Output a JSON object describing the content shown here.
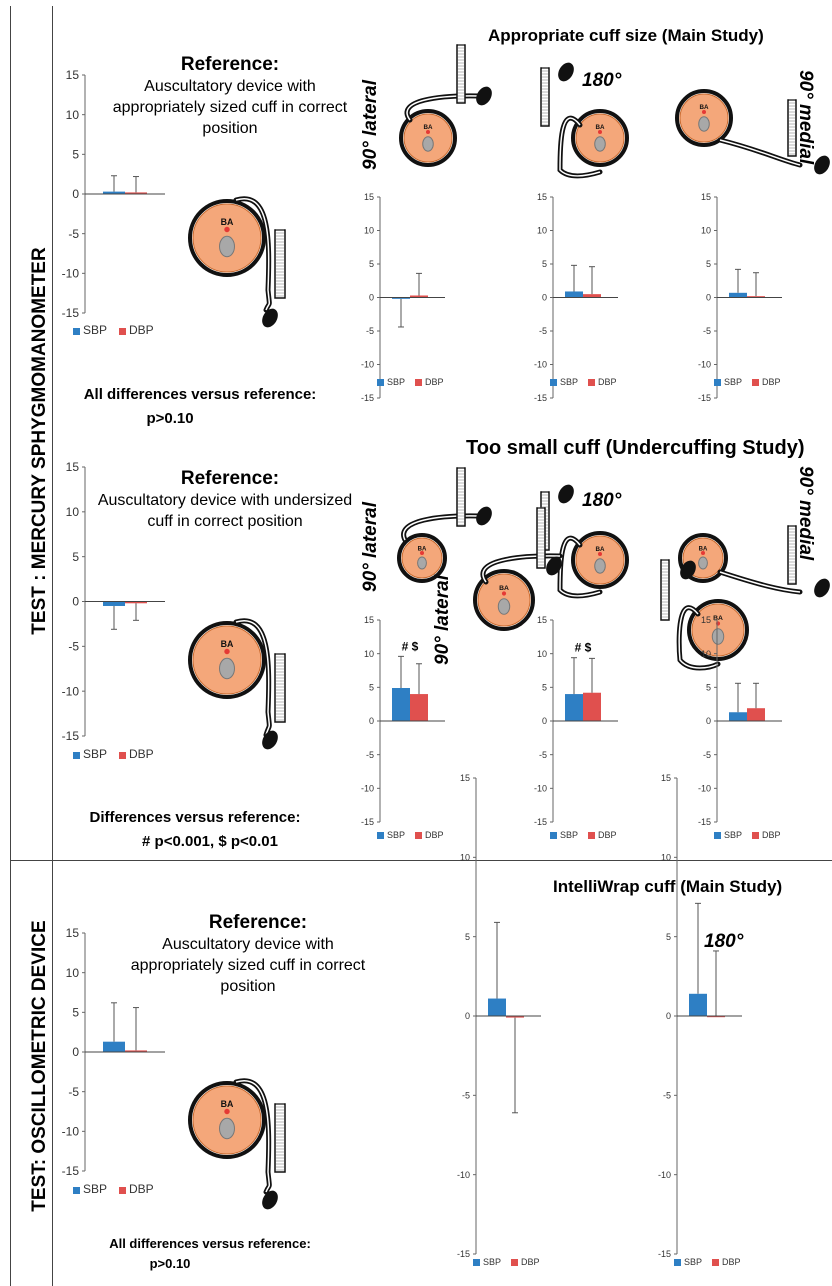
{
  "rows": {
    "mercury_label": "TEST : MERCURY SPHYGMOMANOMETER",
    "oscillometric_label": "TEST: OSCILLOMETRIC DEVICE"
  },
  "sections": {
    "main": {
      "title": "Appropriate cuff size (Main Study)",
      "ref_title": "Reference:",
      "ref_desc": "Auscultatory device with appropriately sized cuff in correct position",
      "note_line1": "All differences versus reference:",
      "note_line2": "p>0.10"
    },
    "under": {
      "title": "Too small cuff (Undercuffing Study)",
      "ref_title": "Reference:",
      "ref_desc": "Auscultatory device with undersized cuff in correct position",
      "note_line1": "Differences versus reference:",
      "note_line2": "# p<0.001, $ p<0.01"
    },
    "osc": {
      "title": "IntelliWrap cuff (Main Study)",
      "ref_title": "Reference:",
      "ref_desc": "Auscultatory device with appropriately sized cuff in correct position",
      "note_line1": "All differences versus reference:",
      "note_line2": "p>0.10"
    }
  },
  "angles": {
    "lateral": "90° lateral",
    "deg180": "180°",
    "medial": "90° medial"
  },
  "diagram_label": "BA",
  "colors": {
    "sbp": "#2E7FC4",
    "dbp": "#E0504E",
    "arm": "#F4A77A",
    "bone": "#A8A8A8",
    "dot": "#E53935"
  },
  "chart_data": [
    {
      "id": "c1",
      "type": "bar",
      "categories": [
        "SBP",
        "DBP"
      ],
      "values": [
        0.3,
        0.2
      ],
      "errors": [
        2.0,
        2.0
      ],
      "ylim": [
        -15,
        15
      ],
      "yticks": [
        -15,
        -10,
        -5,
        0,
        5,
        10,
        15
      ],
      "legend": [
        "SBP",
        "DBP"
      ],
      "annotation": ""
    },
    {
      "id": "c2",
      "type": "bar",
      "categories": [
        "SBP",
        "DBP"
      ],
      "values": [
        -0.2,
        0.3
      ],
      "errors": [
        4.2,
        3.3
      ],
      "ylim": [
        -15,
        15
      ],
      "yticks": [
        -15,
        -10,
        -5,
        0,
        5,
        10,
        15
      ],
      "legend": [
        "SBP",
        "DBP"
      ],
      "annotation": ""
    },
    {
      "id": "c3",
      "type": "bar",
      "categories": [
        "SBP",
        "DBP"
      ],
      "values": [
        0.9,
        0.5
      ],
      "errors": [
        3.9,
        4.1
      ],
      "ylim": [
        -15,
        15
      ],
      "yticks": [
        -15,
        -10,
        -5,
        0,
        5,
        10,
        15
      ],
      "legend": [
        "SBP",
        "DBP"
      ],
      "annotation": ""
    },
    {
      "id": "c4",
      "type": "bar",
      "categories": [
        "SBP",
        "DBP"
      ],
      "values": [
        0.7,
        0.2
      ],
      "errors": [
        3.5,
        3.5
      ],
      "ylim": [
        -15,
        15
      ],
      "yticks": [
        -15,
        -10,
        -5,
        0,
        5,
        10,
        15
      ],
      "legend": [
        "SBP",
        "DBP"
      ],
      "annotation": ""
    },
    {
      "id": "c5",
      "type": "bar",
      "categories": [
        "SBP",
        "DBP"
      ],
      "values": [
        -0.5,
        -0.2
      ],
      "errors": [
        2.6,
        1.9
      ],
      "ylim": [
        -15,
        15
      ],
      "yticks": [
        -15,
        -10,
        -5,
        0,
        5,
        10,
        15
      ],
      "legend": [
        "SBP",
        "DBP"
      ],
      "annotation": ""
    },
    {
      "id": "c6",
      "type": "bar",
      "categories": [
        "SBP",
        "DBP"
      ],
      "values": [
        4.9,
        4.0
      ],
      "errors": [
        4.7,
        4.5
      ],
      "ylim": [
        -15,
        15
      ],
      "yticks": [
        -15,
        -10,
        -5,
        0,
        5,
        10,
        15
      ],
      "legend": [
        "SBP",
        "DBP"
      ],
      "annotation": "# $"
    },
    {
      "id": "c7",
      "type": "bar",
      "categories": [
        "SBP",
        "DBP"
      ],
      "values": [
        4.0,
        4.2
      ],
      "errors": [
        5.4,
        5.1
      ],
      "ylim": [
        -15,
        15
      ],
      "yticks": [
        -15,
        -10,
        -5,
        0,
        5,
        10,
        15
      ],
      "legend": [
        "SBP",
        "DBP"
      ],
      "annotation": "# $"
    },
    {
      "id": "c8",
      "type": "bar",
      "categories": [
        "SBP",
        "DBP"
      ],
      "values": [
        1.3,
        1.9
      ],
      "errors": [
        4.3,
        3.7
      ],
      "ylim": [
        -15,
        15
      ],
      "yticks": [
        -15,
        -10,
        -5,
        0,
        5,
        10,
        15
      ],
      "legend": [
        "SBP",
        "DBP"
      ],
      "annotation": ""
    },
    {
      "id": "c9",
      "type": "bar",
      "categories": [
        "SBP",
        "DBP"
      ],
      "values": [
        1.3,
        0.2
      ],
      "errors": [
        4.9,
        5.4
      ],
      "ylim": [
        -15,
        15
      ],
      "yticks": [
        -15,
        -10,
        -5,
        0,
        5,
        10,
        15
      ],
      "legend": [
        "SBP",
        "DBP"
      ],
      "annotation": ""
    },
    {
      "id": "c10",
      "type": "bar",
      "categories": [
        "SBP",
        "DBP"
      ],
      "values": [
        1.1,
        -0.1
      ],
      "errors": [
        4.8,
        6.0
      ],
      "ylim": [
        -15,
        15
      ],
      "yticks": [
        -15,
        -10,
        -5,
        0,
        5,
        10,
        15
      ],
      "legend": [
        "SBP",
        "DBP"
      ],
      "annotation": ""
    },
    {
      "id": "c11",
      "type": "bar",
      "categories": [
        "SBP",
        "DBP"
      ],
      "values": [
        1.4,
        0.0
      ],
      "errors": [
        5.7,
        4.1
      ],
      "ylim": [
        -15,
        15
      ],
      "yticks": [
        -15,
        -10,
        -5,
        0,
        5,
        10,
        15
      ],
      "legend": [
        "SBP",
        "DBP"
      ],
      "annotation": ""
    }
  ]
}
